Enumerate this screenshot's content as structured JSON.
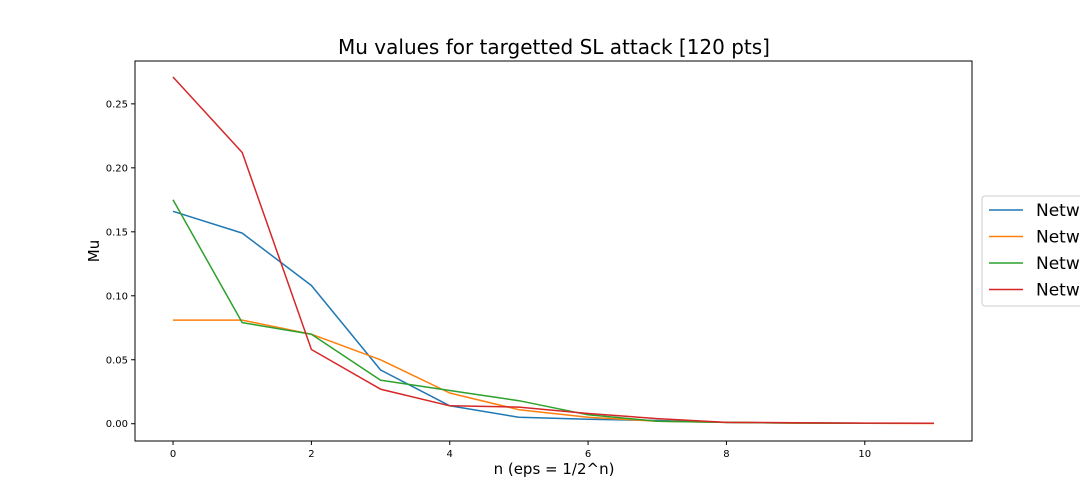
{
  "chart_data": {
    "type": "line",
    "title": "Mu values for targetted SL attack [120 pts]",
    "xlabel": "n (eps = 1/2^n)",
    "ylabel": "Mu",
    "xlim": [
      -0.55,
      11.55
    ],
    "ylim": [
      -0.0135,
      0.2835
    ],
    "xticks": [
      0,
      2,
      4,
      6,
      8,
      10
    ],
    "xtick_labels": [
      "0",
      "2",
      "4",
      "6",
      "8",
      "10"
    ],
    "yticks": [
      0.0,
      0.05,
      0.1,
      0.15,
      0.2,
      0.25
    ],
    "ytick_labels": [
      "0.00",
      "0.05",
      "0.10",
      "0.15",
      "0.20",
      "0.25"
    ],
    "grid": false,
    "legend_position": "outside-right",
    "x": [
      0,
      1,
      2,
      3,
      4,
      5,
      6,
      7,
      8,
      9,
      10,
      11
    ],
    "series": [
      {
        "name": "Netw",
        "color": "#1f77b4",
        "values": [
          0.166,
          0.149,
          0.108,
          0.042,
          0.014,
          0.005,
          0.0035,
          0.0025,
          0.001,
          0.0006,
          0.0004,
          0.0003
        ]
      },
      {
        "name": "Netw",
        "color": "#ff7f0e",
        "values": [
          0.081,
          0.081,
          0.07,
          0.05,
          0.024,
          0.011,
          0.005,
          0.002,
          0.001,
          0.0005,
          0.0003,
          0.0002
        ]
      },
      {
        "name": "Netw",
        "color": "#2ca02c",
        "values": [
          0.175,
          0.079,
          0.07,
          0.034,
          0.026,
          0.018,
          0.007,
          0.002,
          0.001,
          0.0006,
          0.0004,
          0.0003
        ]
      },
      {
        "name": "Netw",
        "color": "#d62728",
        "values": [
          0.271,
          0.212,
          0.058,
          0.027,
          0.014,
          0.013,
          0.008,
          0.004,
          0.001,
          0.0008,
          0.0005,
          0.0004
        ]
      }
    ]
  }
}
